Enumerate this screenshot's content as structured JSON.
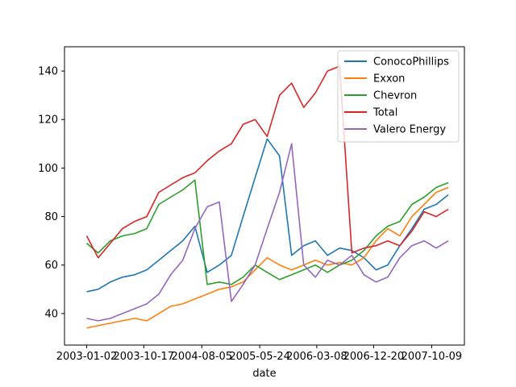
{
  "chart_data": {
    "type": "line",
    "title": "",
    "xlabel": "date",
    "ylabel": "",
    "x_tick_labels": [
      "2003-01-02",
      "2003-10-17",
      "2004-08-05",
      "2005-05-24",
      "2006-03-08",
      "2006-12-20",
      "2007-10-09"
    ],
    "y_ticks": [
      40,
      60,
      80,
      100,
      120,
      140
    ],
    "ylim": [
      27,
      150
    ],
    "xlim": [
      "2002-09-12",
      "2008-03-22"
    ],
    "grid": false,
    "legend_position": "top-right",
    "x": [
      "2003-01-02",
      "2003-03-01",
      "2003-05-01",
      "2003-07-01",
      "2003-09-01",
      "2003-11-01",
      "2004-01-01",
      "2004-03-01",
      "2004-05-01",
      "2004-07-01",
      "2004-09-01",
      "2004-11-01",
      "2005-01-01",
      "2005-03-01",
      "2005-05-01",
      "2005-07-01",
      "2005-09-01",
      "2005-11-01",
      "2006-01-01",
      "2006-03-01",
      "2006-05-01",
      "2006-07-01",
      "2006-09-01",
      "2006-11-01",
      "2007-01-01",
      "2007-03-01",
      "2007-05-01",
      "2007-07-01",
      "2007-09-01",
      "2007-11-01",
      "2008-01-01"
    ],
    "series": [
      {
        "name": "ConocoPhillips",
        "color": "#1f77b4",
        "values": [
          49,
          50,
          53,
          55,
          56,
          58,
          62,
          66,
          70,
          76,
          57,
          60,
          64,
          80,
          96,
          112,
          105,
          64,
          68,
          70,
          64,
          67,
          66,
          63,
          58,
          60,
          68,
          75,
          83,
          85,
          89
        ]
      },
      {
        "name": "Exxon",
        "color": "#ff7f0e",
        "values": [
          34,
          35,
          36,
          37,
          38,
          37,
          40,
          43,
          44,
          46,
          48,
          50,
          51,
          53,
          58,
          63,
          60,
          58,
          60,
          62,
          60,
          61,
          60,
          63,
          70,
          75,
          72,
          80,
          85,
          90,
          92
        ]
      },
      {
        "name": "Chevron",
        "color": "#2ca02c",
        "values": [
          69,
          65,
          70,
          72,
          73,
          75,
          85,
          88,
          91,
          95,
          52,
          53,
          52,
          55,
          60,
          57,
          54,
          56,
          58,
          60,
          57,
          60,
          62,
          66,
          72,
          76,
          78,
          85,
          88,
          92,
          94
        ]
      },
      {
        "name": "Total",
        "color": "#d62728",
        "values": [
          72,
          63,
          69,
          75,
          78,
          80,
          90,
          93,
          96,
          98,
          103,
          107,
          110,
          118,
          120,
          113,
          130,
          135,
          125,
          131,
          140,
          142,
          65,
          67,
          68,
          70,
          68,
          74,
          82,
          80,
          83
        ]
      },
      {
        "name": "Valero Energy",
        "color": "#9467bd",
        "values": [
          38,
          37,
          38,
          40,
          42,
          44,
          48,
          56,
          62,
          75,
          84,
          86,
          45,
          52,
          60,
          75,
          90,
          110,
          60,
          55,
          62,
          60,
          64,
          56,
          53,
          55,
          63,
          68,
          70,
          67,
          70
        ]
      }
    ]
  }
}
